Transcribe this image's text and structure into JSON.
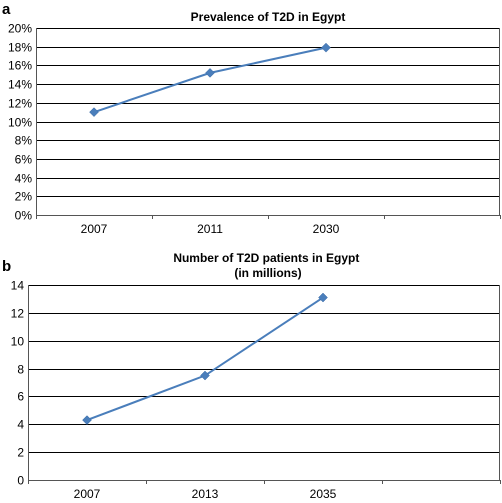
{
  "chart_data": [
    {
      "panel": "a",
      "type": "line",
      "title": "Prevalence of T2D in Egypt",
      "title_lines": [
        "Prevalence of T2D in Egypt"
      ],
      "categories": [
        "2007",
        "2011",
        "2030"
      ],
      "series": [
        {
          "values": [
            0.11,
            0.152,
            0.179
          ],
          "color": "#4a7ebb",
          "marker": "diamond"
        }
      ],
      "ylim": [
        0,
        0.2
      ],
      "yticks": [
        0,
        0.02,
        0.04,
        0.06,
        0.08,
        0.1,
        0.12,
        0.14,
        0.16,
        0.18,
        0.2
      ],
      "ytick_labels": [
        "0%",
        "2%",
        "4%",
        "6%",
        "8%",
        "10%",
        "12%",
        "14%",
        "16%",
        "18%",
        "20%"
      ],
      "n_slots": 4,
      "grid": true,
      "legend": "none"
    },
    {
      "panel": "b",
      "type": "line",
      "title": "Number of T2D patients in Egypt (in millions)",
      "title_lines": [
        "Number of T2D patients in Egypt",
        "(in millions)"
      ],
      "categories": [
        "2007",
        "2013",
        "2035"
      ],
      "series": [
        {
          "values": [
            4.3,
            7.5,
            13.1
          ],
          "color": "#4a7ebb",
          "marker": "diamond"
        }
      ],
      "ylim": [
        0,
        14
      ],
      "yticks": [
        0,
        2,
        4,
        6,
        8,
        10,
        12,
        14
      ],
      "ytick_labels": [
        "0",
        "2",
        "4",
        "6",
        "8",
        "10",
        "12",
        "14"
      ],
      "n_slots": 4,
      "grid": true,
      "legend": "none"
    }
  ]
}
